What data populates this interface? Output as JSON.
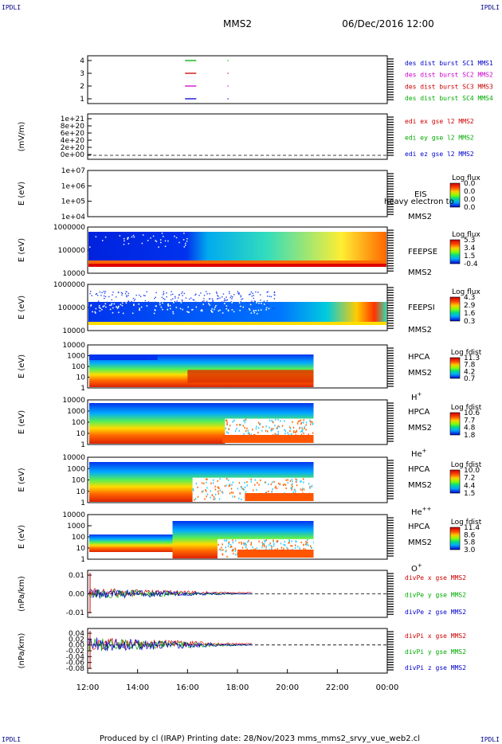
{
  "corner_labels": [
    "IPDLI",
    "IPDLI",
    "IPDLI",
    "IPDLI"
  ],
  "header": {
    "spacecraft": "MMS2",
    "datetime": "06/Dec/2016 12:00"
  },
  "footer": {
    "text": "Produced by cl (IRAP)    Printing date: 28/Nov/2023    mms_mms2_srvy_vue_web2.cl"
  },
  "chart_data": {
    "type": "multi-panel",
    "x_ticks": [
      "12:00",
      "14:00",
      "16:00",
      "18:00",
      "20:00",
      "22:00",
      "00:00"
    ],
    "x_range_hours": [
      12,
      24
    ],
    "panels": [
      {
        "type": "line",
        "ylabel": "",
        "yticks": [
          "4",
          "3",
          "2",
          "1"
        ],
        "legend": [
          {
            "text": "des dist burst SC1 MMS1",
            "color": "#0000cc"
          },
          {
            "text": "des dist burst SC2 MMS2",
            "color": "#cc00cc"
          },
          {
            "text": "des dist burst SC3 MMS3",
            "color": "#cc0000"
          },
          {
            "text": "des dist burst SC4 MMS4",
            "color": "#00aa00"
          }
        ],
        "markers": [
          {
            "sc": 1,
            "t0": 15.9,
            "t1": 16.35,
            "color": "#0000cc"
          },
          {
            "sc": 2,
            "t0": 15.9,
            "t1": 16.35,
            "color": "#cc00cc"
          },
          {
            "sc": 3,
            "t0": 15.9,
            "t1": 16.35,
            "color": "#cc0000"
          },
          {
            "sc": 4,
            "t0": 15.9,
            "t1": 16.35,
            "color": "#00aa00"
          }
        ]
      },
      {
        "type": "line",
        "ylabel": "(mV/m)",
        "yticks": [
          "1e+21",
          "8e+20",
          "6e+20",
          "4e+20",
          "2e+20",
          "0e+00"
        ],
        "ylim": [
          0,
          1e+21
        ],
        "zero_line": true,
        "legend": [
          {
            "text": "edi ex gse l2 MMS2",
            "color": "#cc0000"
          },
          {
            "text": "edi ey gse l2 MMS2",
            "color": "#00aa00"
          },
          {
            "text": "edi ez gse l2 MMS2",
            "color": "#0000cc"
          }
        ]
      },
      {
        "type": "heatmap",
        "ylabel": "E (eV)",
        "yticks": [
          "1e+07",
          "1e+06",
          "1e+05",
          "1e+04"
        ],
        "instrument": "EIS",
        "spacecraft": "MMS2",
        "overlay_text": "heavy electron to",
        "colorbar": {
          "title": "Log flux",
          "ticks": [
            "0.0",
            "0.0",
            "0.0",
            "0.0"
          ]
        }
      },
      {
        "type": "heatmap",
        "ylabel": "E (eV)",
        "yticks": [
          "1000000",
          "100000",
          "10000"
        ],
        "instrument": "FEEPSE",
        "spacecraft": "MMS2",
        "colorbar": {
          "title": "Log flux",
          "ticks": [
            "5.3",
            "3.4",
            "1.5",
            "-0.4"
          ]
        }
      },
      {
        "type": "heatmap",
        "ylabel": "E (eV)",
        "yticks": [
          "1000000",
          "100000",
          "10000"
        ],
        "instrument": "FEEPSI",
        "spacecraft": "MMS2",
        "colorbar": {
          "title": "Log flux",
          "ticks": [
            "4.3",
            "2.9",
            "1.6",
            "0.3"
          ]
        }
      },
      {
        "type": "heatmap",
        "ylabel": "E (eV)",
        "yticks": [
          "10000",
          "1000",
          "100",
          "10",
          "1"
        ],
        "instrument": "HPCA",
        "spacecraft": "MMS2",
        "species": "H",
        "species_sup": "+",
        "colorbar": {
          "title": "Log fdist",
          "ticks": [
            "11.3",
            "7.8",
            "4.2",
            "0.7"
          ]
        }
      },
      {
        "type": "heatmap",
        "ylabel": "E (eV)",
        "yticks": [
          "10000",
          "1000",
          "100",
          "10",
          "1"
        ],
        "instrument": "HPCA",
        "spacecraft": "MMS2",
        "species": "He",
        "species_sup": "+",
        "colorbar": {
          "title": "Log fdist",
          "ticks": [
            "10.6",
            "7.7",
            "4.8",
            "1.8"
          ]
        }
      },
      {
        "type": "heatmap",
        "ylabel": "E (eV)",
        "yticks": [
          "10000",
          "1000",
          "100",
          "10",
          "1"
        ],
        "instrument": "HPCA",
        "spacecraft": "MMS2",
        "species": "He",
        "species_sup": "++",
        "colorbar": {
          "title": "Log fdist",
          "ticks": [
            "10.0",
            "7.2",
            "4.4",
            "1.5"
          ]
        }
      },
      {
        "type": "heatmap",
        "ylabel": "E (eV)",
        "yticks": [
          "10000",
          "1000",
          "100",
          "10",
          "1"
        ],
        "instrument": "HPCA",
        "spacecraft": "MMS2",
        "species": "O",
        "species_sup": "+",
        "colorbar": {
          "title": "Log fdist",
          "ticks": [
            "11.4",
            "8.6",
            "5.8",
            "3.0"
          ]
        }
      },
      {
        "type": "line",
        "ylabel": "(nPa/km)",
        "yticks": [
          "0.01",
          "0.00",
          "-0.01"
        ],
        "ylim": [
          -0.02,
          0.02
        ],
        "zero_line": true,
        "legend": [
          {
            "text": "divPe x gse MMS2",
            "color": "#cc0000"
          },
          {
            "text": "divPe y gse MMS2",
            "color": "#00aa00"
          },
          {
            "text": "divPe z gse MMS2",
            "color": "#0000cc"
          }
        ]
      },
      {
        "type": "line",
        "ylabel": "(nPa/km)",
        "yticks": [
          "0.04",
          "0.02",
          "0.00",
          "-0.02",
          "-0.04",
          "-0.06",
          "-0.08"
        ],
        "ylim": [
          -0.08,
          0.04
        ],
        "zero_line": true,
        "legend": [
          {
            "text": "divPi x gse MMS2",
            "color": "#cc0000"
          },
          {
            "text": "divPi y gse MMS2",
            "color": "#00aa00"
          },
          {
            "text": "divPi z gse MMS2",
            "color": "#0000cc"
          }
        ]
      }
    ]
  }
}
